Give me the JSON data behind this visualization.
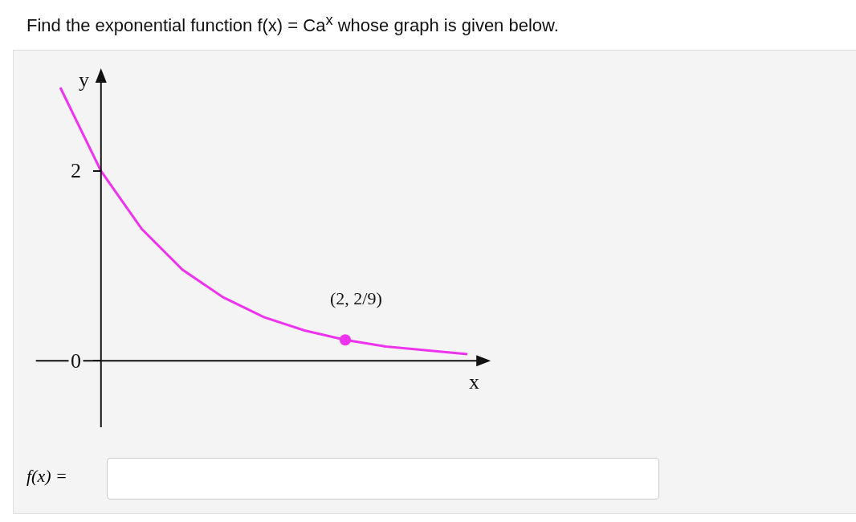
{
  "chart_data": {
    "type": "line",
    "title": "Find the exponential function f(x) = Ca$^{x}$ whose graph is given below.",
    "xlabel": "x",
    "ylabel": "y",
    "categories": [
      null,
      null,
      null,
      null,
      null,
      null,
      null,
      null,
      null,
      null,
      null
    ],
    "ylim": [
      -0.7,
      3.1
    ],
    "yticks": [
      0,
      2
    ],
    "tick_labels": "y",
    "grid": false,
    "ref_lines": [
      {
        "axis": "y",
        "value": 0,
        "color": "#111111",
        "line_style": "solid"
      }
    ],
    "series": [
      {
        "color": "#ee33ee",
        "marker": "none",
        "values": [
          2.88,
          2,
          1.39,
          0.96,
          0.67,
          0.46,
          0.32,
          0.22,
          0.15,
          0.11,
          0.07
        ]
      },
      {
        "type": "scatter",
        "color": "#ee33ee",
        "marker": "circle",
        "values": [
          null,
          null,
          null,
          null,
          null,
          null,
          null,
          0.22,
          null,
          null,
          null
        ]
      }
    ],
    "annotations": [
      "(2, 2/9)",
      "f(x) ="
    ]
  }
}
